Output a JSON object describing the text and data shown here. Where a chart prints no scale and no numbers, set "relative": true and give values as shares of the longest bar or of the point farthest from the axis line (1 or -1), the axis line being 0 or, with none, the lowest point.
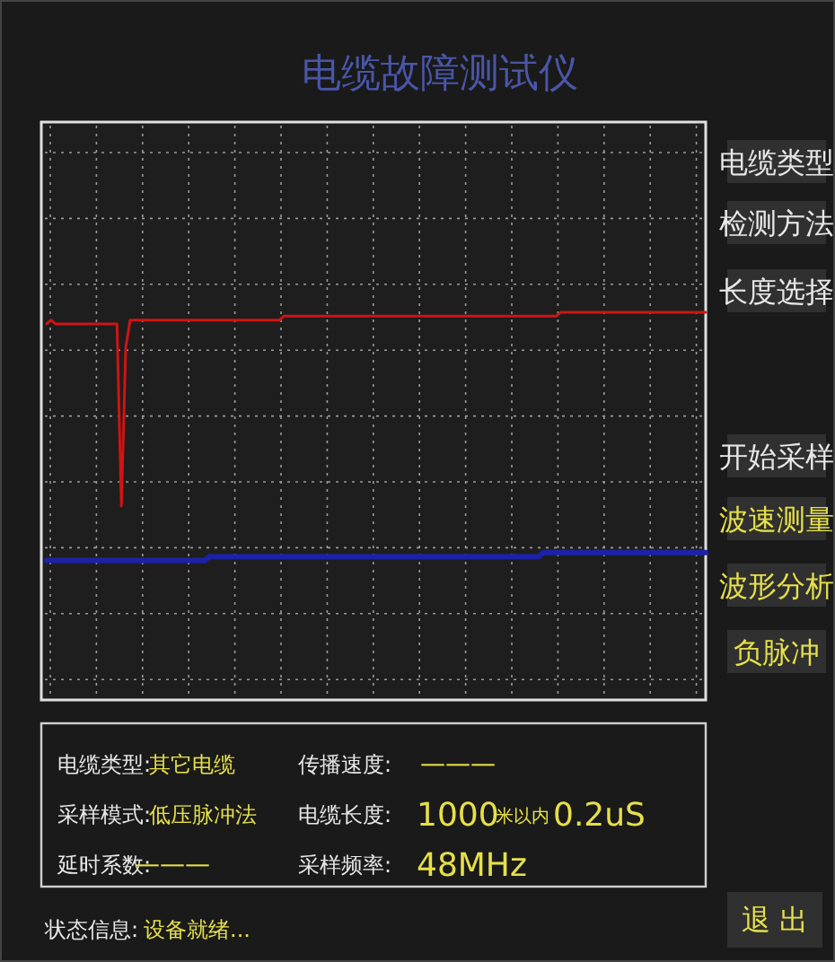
{
  "chart_data": {
    "type": "line",
    "title": "电缆故障测试仪",
    "relative": true,
    "grid": true,
    "categories": [
      null,
      null,
      null,
      null,
      null,
      null,
      null,
      null,
      null,
      null,
      null,
      null,
      null,
      null,
      null,
      null,
      null,
      null,
      null,
      null,
      null,
      null,
      null,
      null,
      null,
      null,
      null,
      null,
      null,
      null,
      null,
      null,
      null,
      null,
      null,
      null,
      null,
      null,
      null,
      null,
      null,
      null,
      null,
      null,
      null,
      null,
      null,
      null,
      null,
      null,
      null,
      null,
      null,
      null,
      null,
      null,
      null,
      null,
      null,
      null,
      null,
      null,
      null,
      null,
      null,
      null,
      null,
      null,
      null,
      null,
      null,
      null,
      null,
      null,
      null,
      null,
      null,
      null,
      null,
      null,
      null,
      null,
      null,
      null,
      null,
      null,
      null,
      null,
      null,
      null,
      null,
      null,
      null,
      null,
      null,
      null,
      null,
      null,
      null,
      null,
      null,
      null,
      null,
      null,
      null,
      null,
      null,
      null,
      null,
      null,
      null,
      null,
      null,
      null,
      null,
      null,
      null,
      null,
      null,
      null,
      null,
      null,
      null,
      null,
      null,
      null,
      null,
      null,
      null,
      null,
      null,
      null,
      null,
      null,
      null,
      null,
      null,
      null,
      null,
      null,
      null,
      null,
      null,
      null,
      null,
      null,
      null,
      null,
      null,
      null,
      null
    ],
    "series": [
      {
        "color": "#d01414",
        "values": [
          0.97,
          0.98,
          0.97,
          0.97,
          0.97,
          0.97,
          0.97,
          0.97,
          0.97,
          0.97,
          0.97,
          0.97,
          0.97,
          0.97,
          0.97,
          0.97,
          0.97,
          0.5,
          0.91,
          0.98,
          0.98,
          0.98,
          0.98,
          0.98,
          0.98,
          0.98,
          0.98,
          0.98,
          0.98,
          0.98,
          0.98,
          0.98,
          0.98,
          0.98,
          0.98,
          0.98,
          0.98,
          0.98,
          0.98,
          0.98,
          0.98,
          0.98,
          0.98,
          0.98,
          0.98,
          0.98,
          0.98,
          0.98,
          0.98,
          0.98,
          0.98,
          0.98,
          0.98,
          0.98,
          0.99,
          0.99,
          0.99,
          0.99,
          0.99,
          0.99,
          0.99,
          0.99,
          0.99,
          0.99,
          0.99,
          0.99,
          0.99,
          0.99,
          0.99,
          0.99,
          0.99,
          0.99,
          0.99,
          0.99,
          0.99,
          0.99,
          0.99,
          0.99,
          0.99,
          0.99,
          0.99,
          0.99,
          0.99,
          0.99,
          0.99,
          0.99,
          0.99,
          0.99,
          0.99,
          0.99,
          0.99,
          0.99,
          0.99,
          0.99,
          0.99,
          0.99,
          0.99,
          0.99,
          0.99,
          0.99,
          0.99,
          0.99,
          0.99,
          0.99,
          0.99,
          0.99,
          0.99,
          0.99,
          0.99,
          0.99,
          0.99,
          0.99,
          0.99,
          0.99,
          0.99,
          0.99,
          0.99,
          1,
          1,
          1,
          1,
          1,
          1,
          1,
          1,
          1,
          1,
          1,
          1,
          1,
          1,
          1,
          1,
          1,
          1,
          1,
          1,
          1,
          1,
          1,
          1,
          1,
          1,
          1,
          1,
          1,
          1,
          1,
          1,
          1,
          1
        ]
      },
      {
        "color": "#1c22a8",
        "values": [
          0.36,
          0.36,
          0.36,
          0.36,
          0.36,
          0.36,
          0.36,
          0.36,
          0.36,
          0.36,
          0.36,
          0.36,
          0.36,
          0.36,
          0.36,
          0.36,
          0.36,
          0.36,
          0.36,
          0.36,
          0.36,
          0.36,
          0.36,
          0.36,
          0.36,
          0.36,
          0.36,
          0.36,
          0.36,
          0.36,
          0.36,
          0.36,
          0.36,
          0.36,
          0.36,
          0.36,
          0.36,
          0.37,
          0.37,
          0.37,
          0.37,
          0.37,
          0.37,
          0.37,
          0.37,
          0.37,
          0.37,
          0.37,
          0.37,
          0.37,
          0.37,
          0.37,
          0.37,
          0.37,
          0.37,
          0.37,
          0.37,
          0.37,
          0.37,
          0.37,
          0.37,
          0.37,
          0.37,
          0.37,
          0.37,
          0.37,
          0.37,
          0.37,
          0.37,
          0.37,
          0.37,
          0.37,
          0.37,
          0.37,
          0.37,
          0.37,
          0.37,
          0.37,
          0.37,
          0.37,
          0.37,
          0.37,
          0.37,
          0.37,
          0.37,
          0.37,
          0.37,
          0.37,
          0.37,
          0.37,
          0.37,
          0.37,
          0.37,
          0.37,
          0.37,
          0.37,
          0.37,
          0.37,
          0.37,
          0.37,
          0.37,
          0.37,
          0.37,
          0.37,
          0.37,
          0.37,
          0.37,
          0.37,
          0.37,
          0.37,
          0.37,
          0.37,
          0.37,
          0.38,
          0.38,
          0.38,
          0.38,
          0.38,
          0.38,
          0.38,
          0.38,
          0.38,
          0.38,
          0.38,
          0.38,
          0.38,
          0.38,
          0.38,
          0.38,
          0.38,
          0.38,
          0.38,
          0.38,
          0.38,
          0.38,
          0.38,
          0.38,
          0.38,
          0.38,
          0.38,
          0.38,
          0.38,
          0.38,
          0.38,
          0.38,
          0.38,
          0.38,
          0.38,
          0.38,
          0.38,
          0.38
        ]
      }
    ],
    "annotations": [
      "电缆类型",
      "检测方法",
      "长度选择",
      "开始采样",
      "波速测量",
      "波形分析",
      "负脉冲",
      "电缆类型:",
      "其它电缆",
      "采样模式:",
      "低压脉冲法",
      "延时系数:",
      "———",
      "传播速度:",
      "———",
      "电缆长度:",
      "1000",
      "米以内",
      "0.2uS",
      "采样频率:",
      "48MHz",
      "状态信息:",
      "设备就绪...",
      "退 出"
    ]
  }
}
